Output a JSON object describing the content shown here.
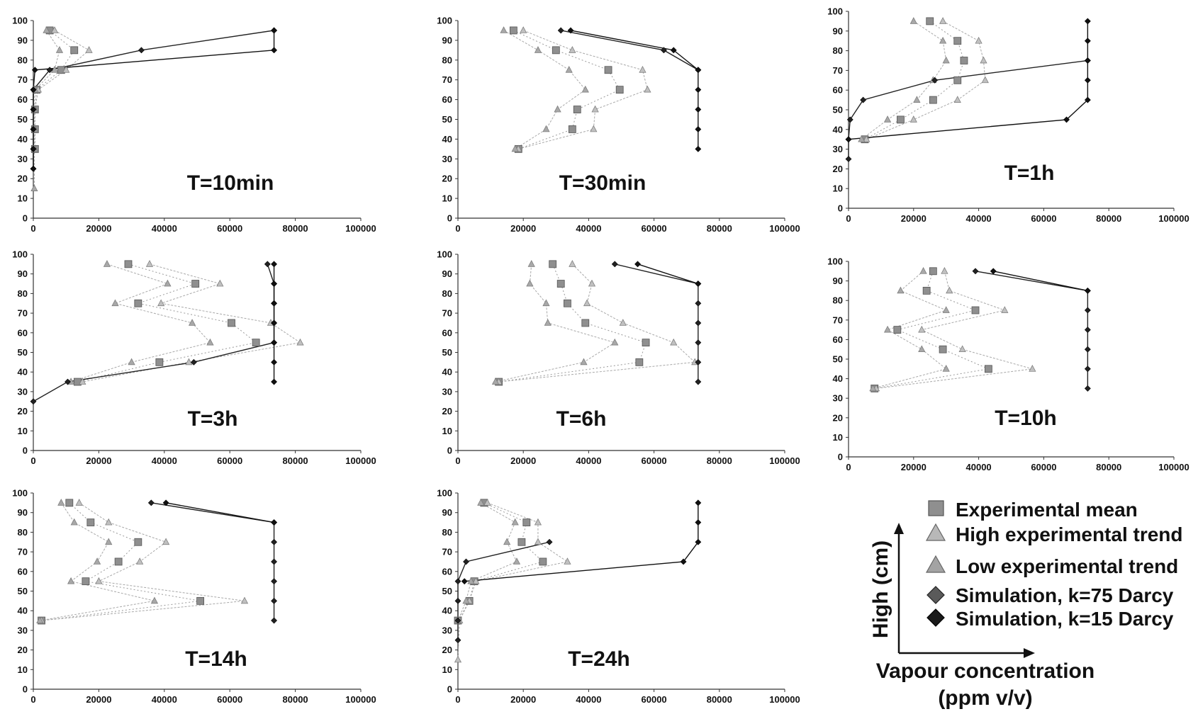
{
  "legend": {
    "items": [
      {
        "label": "Experimental mean",
        "marker": "square",
        "color": "#8f8f8f"
      },
      {
        "label": "High experimental trend",
        "marker": "triangle",
        "color": "#b8b8b8"
      },
      {
        "label": "Low experimental trend",
        "marker": "triangle",
        "color": "#a3a3a3"
      },
      {
        "label": "Simulation, k=75 Darcy",
        "marker": "diamond",
        "color": "#5a5a5a"
      },
      {
        "label": "Simulation, k=15 Darcy",
        "marker": "diamond",
        "color": "#1a1a1a"
      }
    ],
    "y_axis_label": "High (cm)",
    "x_axis_label_1": "Vapour concentration",
    "x_axis_label_2": "(ppm v/v)"
  },
  "chart_data": [
    {
      "type": "line",
      "title": "T=10min",
      "xlim": [
        0,
        100000
      ],
      "ylim": [
        0,
        100
      ],
      "xticks": [
        "0",
        "20000",
        "40000",
        "60000",
        "80000",
        "100000"
      ],
      "yticks": [
        "0",
        "10",
        "20",
        "30",
        "40",
        "50",
        "60",
        "70",
        "80",
        "90",
        "100"
      ],
      "series": [
        {
          "name": "Experimental mean",
          "x": [
            5000,
            12500,
            8500,
            1000,
            500,
            500,
            500
          ],
          "y": [
            95,
            85,
            75,
            65,
            55,
            45,
            35
          ]
        },
        {
          "name": "High experimental trend",
          "x": [
            6500,
            17000,
            10000,
            1500,
            500,
            500,
            500
          ],
          "y": [
            95,
            85,
            75,
            65,
            55,
            45,
            35
          ]
        },
        {
          "name": "Low experimental trend",
          "x": [
            4000,
            8000,
            6500,
            500,
            300,
            300,
            300,
            300
          ],
          "y": [
            95,
            85,
            75,
            65,
            55,
            45,
            35,
            15
          ]
        },
        {
          "name": "Simulation, k=75 Darcy",
          "x": [
            73500,
            33000,
            5000,
            0,
            0,
            0,
            0,
            0
          ],
          "y": [
            95,
            85,
            75,
            65,
            55,
            45,
            35,
            25
          ]
        },
        {
          "name": "Simulation, k=15 Darcy",
          "x": [
            73500,
            73500,
            500,
            0,
            0,
            0,
            0,
            0
          ],
          "y": [
            95,
            85,
            75,
            65,
            55,
            45,
            35,
            25
          ]
        }
      ]
    },
    {
      "type": "line",
      "title": "T=30min",
      "xlim": [
        0,
        100000
      ],
      "ylim": [
        0,
        100
      ],
      "xticks": [
        "0",
        "20000",
        "40000",
        "60000",
        "80000",
        "100000"
      ],
      "yticks": [
        "0",
        "10",
        "20",
        "30",
        "40",
        "50",
        "60",
        "70",
        "80",
        "90",
        "100"
      ],
      "series": [
        {
          "name": "Experimental mean",
          "x": [
            17000,
            30000,
            46000,
            49500,
            36500,
            35000,
            18500
          ],
          "y": [
            95,
            85,
            75,
            65,
            55,
            45,
            35
          ]
        },
        {
          "name": "High experimental trend",
          "x": [
            20000,
            35000,
            56500,
            58000,
            42000,
            41500,
            18500
          ],
          "y": [
            95,
            85,
            75,
            65,
            55,
            45,
            35
          ]
        },
        {
          "name": "Low experimental trend",
          "x": [
            14000,
            24500,
            34000,
            39000,
            30500,
            27000,
            17500
          ],
          "y": [
            95,
            85,
            75,
            65,
            55,
            45,
            35
          ]
        },
        {
          "name": "Simulation, k=75 Darcy",
          "x": [
            31500,
            63000,
            73500
          ],
          "y": [
            95,
            85,
            75
          ]
        },
        {
          "name": "Simulation, k=15 Darcy",
          "x": [
            34500,
            66000,
            73500,
            73500,
            73500,
            73500,
            73500
          ],
          "y": [
            95,
            85,
            75,
            65,
            55,
            45,
            35
          ]
        }
      ]
    },
    {
      "type": "line",
      "title": "T=1h",
      "xlim": [
        0,
        100000
      ],
      "ylim": [
        0,
        100
      ],
      "xticks": [
        "0",
        "20000",
        "40000",
        "60000",
        "80000",
        "100000"
      ],
      "yticks": [
        "0",
        "10",
        "20",
        "30",
        "40",
        "50",
        "60",
        "70",
        "80",
        "90",
        "100"
      ],
      "series": [
        {
          "name": "Experimental mean",
          "x": [
            25000,
            33500,
            35500,
            33500,
            26000,
            16000,
            5000
          ],
          "y": [
            95,
            85,
            75,
            65,
            55,
            45,
            35
          ]
        },
        {
          "name": "High experimental trend",
          "x": [
            29000,
            40000,
            41500,
            42000,
            33500,
            20000,
            5500
          ],
          "y": [
            95,
            85,
            75,
            65,
            55,
            45,
            35
          ]
        },
        {
          "name": "Low experimental trend",
          "x": [
            20000,
            29000,
            30000,
            26000,
            21000,
            12000,
            4000
          ],
          "y": [
            95,
            85,
            75,
            65,
            55,
            45,
            35
          ]
        },
        {
          "name": "Simulation, k=75 Darcy",
          "x": [
            73500,
            26500,
            4500,
            500,
            0,
            0
          ],
          "y": [
            75,
            65,
            55,
            45,
            35,
            25
          ]
        },
        {
          "name": "Simulation, k=15 Darcy",
          "x": [
            73500,
            73500,
            73500,
            73500,
            73500,
            67000,
            0
          ],
          "y": [
            95,
            85,
            75,
            65,
            55,
            45,
            35
          ]
        }
      ]
    },
    {
      "type": "line",
      "title": "T=3h",
      "xlim": [
        0,
        100000
      ],
      "ylim": [
        0,
        100
      ],
      "xticks": [
        "0",
        "20000",
        "40000",
        "60000",
        "80000",
        "100000"
      ],
      "yticks": [
        "0",
        "10",
        "20",
        "30",
        "40",
        "50",
        "60",
        "70",
        "80",
        "90",
        "100"
      ],
      "series": [
        {
          "name": "Experimental mean",
          "x": [
            29000,
            49500,
            32000,
            60500,
            68000,
            38500,
            13500
          ],
          "y": [
            95,
            85,
            75,
            65,
            55,
            45,
            35
          ]
        },
        {
          "name": "High experimental trend",
          "x": [
            35500,
            57000,
            39000,
            72500,
            81500,
            47500,
            15000
          ],
          "y": [
            95,
            85,
            75,
            65,
            55,
            45,
            35
          ]
        },
        {
          "name": "Low experimental trend",
          "x": [
            22500,
            41000,
            25000,
            48500,
            54000,
            30000,
            11500
          ],
          "y": [
            95,
            85,
            75,
            65,
            55,
            45,
            35
          ]
        },
        {
          "name": "Simulation, k=75 Darcy",
          "x": [
            71500,
            73500,
            73500,
            73500,
            73500,
            49000,
            10500,
            0
          ],
          "y": [
            95,
            85,
            75,
            65,
            55,
            45,
            35,
            25
          ]
        },
        {
          "name": "Simulation, k=15 Darcy",
          "x": [
            73500,
            73500,
            73500,
            73500,
            73500,
            73500,
            73500
          ],
          "y": [
            95,
            85,
            75,
            65,
            55,
            45,
            35
          ]
        }
      ]
    },
    {
      "type": "line",
      "title": "T=6h",
      "xlim": [
        0,
        100000
      ],
      "ylim": [
        0,
        100
      ],
      "xticks": [
        "0",
        "20000",
        "40000",
        "60000",
        "80000",
        "100000"
      ],
      "yticks": [
        "0",
        "10",
        "20",
        "30",
        "40",
        "50",
        "60",
        "70",
        "80",
        "90",
        "100"
      ],
      "series": [
        {
          "name": "Experimental mean",
          "x": [
            29000,
            31500,
            33500,
            39000,
            57500,
            55500,
            12500
          ],
          "y": [
            95,
            85,
            75,
            65,
            55,
            45,
            35
          ]
        },
        {
          "name": "High experimental trend",
          "x": [
            35000,
            41000,
            39500,
            50500,
            66000,
            72500,
            12500
          ],
          "y": [
            95,
            85,
            75,
            65,
            55,
            45,
            35
          ]
        },
        {
          "name": "Low experimental trend",
          "x": [
            22500,
            22000,
            27000,
            27500,
            48000,
            38500,
            11500
          ],
          "y": [
            95,
            85,
            75,
            65,
            55,
            45,
            35
          ]
        },
        {
          "name": "Simulation, k=75 Darcy",
          "x": [
            48000,
            73500,
            73500,
            73500,
            73500,
            73500,
            73500
          ],
          "y": [
            95,
            85,
            75,
            65,
            55,
            45,
            35
          ]
        },
        {
          "name": "Simulation, k=15 Darcy",
          "x": [
            55000,
            73500
          ],
          "y": [
            95,
            85
          ]
        }
      ]
    },
    {
      "type": "line",
      "title": "T=10h",
      "xlim": [
        0,
        100000
      ],
      "ylim": [
        0,
        100
      ],
      "xticks": [
        "0",
        "20000",
        "40000",
        "60000",
        "80000",
        "100000"
      ],
      "yticks": [
        "0",
        "10",
        "20",
        "30",
        "40",
        "50",
        "60",
        "70",
        "80",
        "90",
        "100"
      ],
      "series": [
        {
          "name": "Experimental mean",
          "x": [
            26000,
            24000,
            39000,
            15000,
            29000,
            43000,
            8000
          ],
          "y": [
            95,
            85,
            75,
            65,
            55,
            45,
            35
          ]
        },
        {
          "name": "High experimental trend",
          "x": [
            29500,
            31000,
            48000,
            22500,
            35000,
            56500,
            8500
          ],
          "y": [
            95,
            85,
            75,
            65,
            55,
            45,
            35
          ]
        },
        {
          "name": "Low experimental trend",
          "x": [
            23000,
            16000,
            30000,
            12000,
            22500,
            30000,
            7500
          ],
          "y": [
            95,
            85,
            75,
            65,
            55,
            45,
            35
          ]
        },
        {
          "name": "Simulation, k=75 Darcy",
          "x": [
            39000,
            73500,
            73500,
            73500,
            73500,
            73500,
            73500
          ],
          "y": [
            95,
            85,
            75,
            65,
            55,
            45,
            35
          ]
        },
        {
          "name": "Simulation, k=15 Darcy",
          "x": [
            44500,
            73500
          ],
          "y": [
            95,
            85
          ]
        }
      ]
    },
    {
      "type": "line",
      "title": "T=14h",
      "xlim": [
        0,
        100000
      ],
      "ylim": [
        0,
        100
      ],
      "xticks": [
        "0",
        "20000",
        "40000",
        "60000",
        "80000",
        "100000"
      ],
      "yticks": [
        "0",
        "10",
        "20",
        "30",
        "40",
        "50",
        "60",
        "70",
        "80",
        "90",
        "100"
      ],
      "series": [
        {
          "name": "Experimental mean",
          "x": [
            11000,
            17500,
            32000,
            26000,
            16000,
            51000,
            2500
          ],
          "y": [
            95,
            85,
            75,
            65,
            55,
            45,
            35
          ]
        },
        {
          "name": "High experimental trend",
          "x": [
            14000,
            23000,
            40500,
            32500,
            20000,
            64500,
            2500
          ],
          "y": [
            95,
            85,
            75,
            65,
            55,
            45,
            35
          ]
        },
        {
          "name": "Low experimental trend",
          "x": [
            8500,
            12500,
            23000,
            19500,
            11500,
            37000,
            2000
          ],
          "y": [
            95,
            85,
            75,
            65,
            55,
            45,
            35
          ]
        },
        {
          "name": "Simulation, k=75 Darcy",
          "x": [
            36000,
            73500,
            73500,
            73500,
            73500,
            73500,
            73500
          ],
          "y": [
            95,
            85,
            75,
            65,
            55,
            45,
            35
          ]
        },
        {
          "name": "Simulation, k=15 Darcy",
          "x": [
            40500,
            73500
          ],
          "y": [
            95,
            85
          ]
        }
      ]
    },
    {
      "type": "line",
      "title": "T=24h",
      "xlim": [
        0,
        100000
      ],
      "ylim": [
        0,
        100
      ],
      "xticks": [
        "0",
        "20000",
        "40000",
        "60000",
        "80000",
        "100000"
      ],
      "yticks": [
        "0",
        "10",
        "20",
        "30",
        "40",
        "50",
        "60",
        "70",
        "80",
        "90",
        "100"
      ],
      "series": [
        {
          "name": "Experimental mean",
          "x": [
            8000,
            21000,
            19500,
            26000,
            5000,
            3500,
            0
          ],
          "y": [
            95,
            85,
            75,
            65,
            55,
            45,
            35
          ]
        },
        {
          "name": "High experimental trend",
          "x": [
            9000,
            24500,
            24500,
            33500,
            5500,
            3500,
            500,
            0
          ],
          "y": [
            95,
            85,
            75,
            65,
            55,
            45,
            35,
            15
          ]
        },
        {
          "name": "Low experimental trend",
          "x": [
            7000,
            17500,
            15000,
            18000,
            4000,
            2500,
            0
          ],
          "y": [
            95,
            85,
            75,
            65,
            55,
            45,
            35
          ]
        },
        {
          "name": "Simulation, k=75 Darcy",
          "x": [
            28000,
            2500,
            0,
            0,
            0,
            0
          ],
          "y": [
            75,
            65,
            55,
            45,
            35,
            25
          ]
        },
        {
          "name": "Simulation, k=15 Darcy",
          "x": [
            73500,
            73500,
            73500,
            69000,
            2000
          ],
          "y": [
            95,
            85,
            75,
            65,
            55
          ]
        }
      ]
    }
  ]
}
